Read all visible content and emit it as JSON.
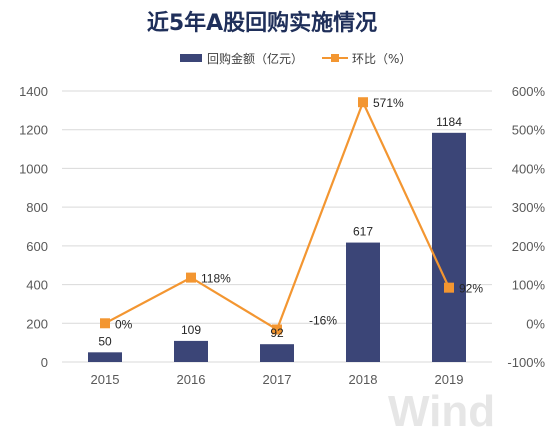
{
  "chart_data": {
    "type": "bar",
    "title": "近5年A股回购实施情况",
    "categories": [
      "2015",
      "2016",
      "2017",
      "2018",
      "2019"
    ],
    "series": [
      {
        "name": "回购金额（亿元）",
        "type": "bar",
        "axis": "left",
        "values": [
          50,
          109,
          92,
          617,
          1184
        ],
        "labels": [
          "50",
          "109",
          "92",
          "617",
          "1184"
        ],
        "color": "#3b4577"
      },
      {
        "name": "环比（%）",
        "type": "line",
        "axis": "right",
        "values": [
          0,
          118,
          -16,
          571,
          92
        ],
        "labels": [
          "0%",
          "118%",
          "-16%",
          "571%",
          "92%"
        ],
        "color": "#f39631"
      }
    ],
    "y_left": {
      "min": 0,
      "max": 1400,
      "ticks": [
        "0",
        "200",
        "400",
        "600",
        "800",
        "1000",
        "1200",
        "1400"
      ]
    },
    "y_right": {
      "min": -100,
      "max": 600,
      "ticks": [
        "-100%",
        "0%",
        "100%",
        "200%",
        "300%",
        "400%",
        "500%",
        "600%"
      ]
    },
    "grid": true,
    "legend": "top-center"
  },
  "watermark": "Wind"
}
